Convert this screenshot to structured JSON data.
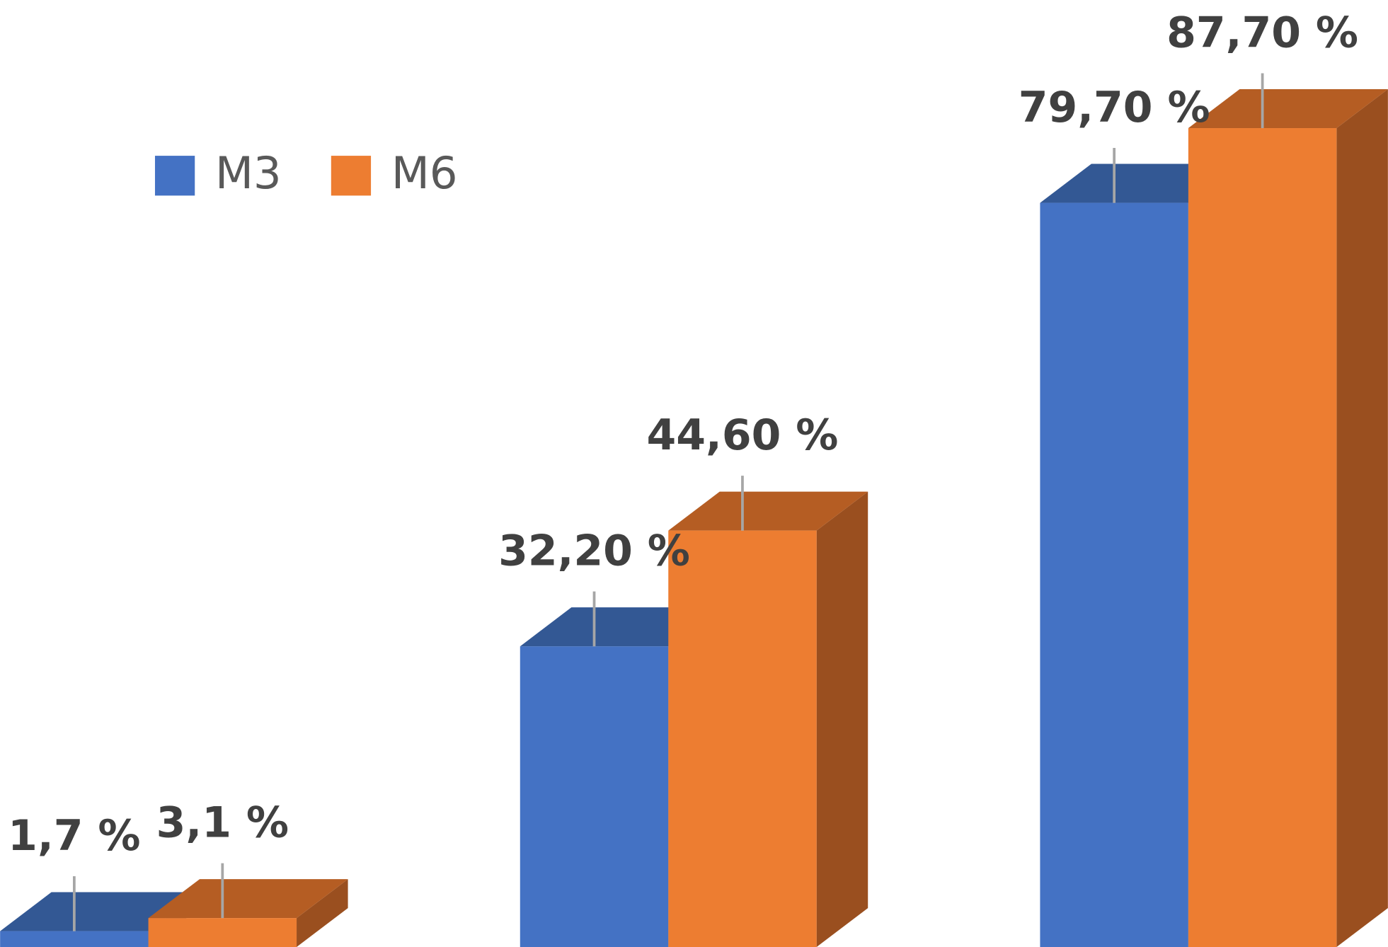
{
  "chart_data": {
    "type": "bar3d",
    "categories": [
      null,
      null,
      null
    ],
    "series": [
      {
        "name": "M3",
        "color": "#4472c4",
        "top_color": "#335894",
        "side_color": "#2f5597",
        "values": [
          1.7,
          32.2,
          79.7
        ],
        "value_labels": [
          "1,7 %",
          "32,20 %",
          "79,70 %"
        ]
      },
      {
        "name": "M6",
        "color": "#ed7d31",
        "top_color": "#b55d23",
        "side_color": "#9a4f1f",
        "values": [
          3.1,
          44.6,
          87.7
        ],
        "value_labels": [
          "3,1 %",
          "44,60 %",
          "87,70 %"
        ]
      }
    ],
    "legend": "top-left"
  }
}
